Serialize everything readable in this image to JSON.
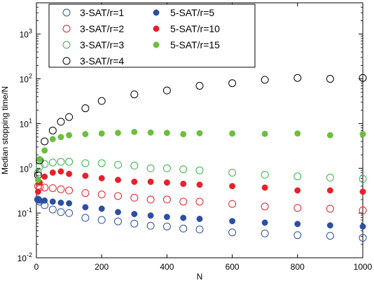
{
  "chart_data": {
    "type": "scatter",
    "xlabel": "N",
    "ylabel": "Median stopping time/N",
    "xlim": [
      0,
      1000
    ],
    "ylim_log10": [
      -2,
      3.7
    ],
    "y_scale": "log",
    "legend_position": "top-left",
    "x_ticks": [
      "0",
      "200",
      "400",
      "600",
      "800",
      "1000"
    ],
    "x_tick_values": [
      0,
      200,
      400,
      600,
      800,
      1000
    ],
    "y_tick_exponents": [
      -2,
      -1,
      0,
      1,
      2,
      3
    ],
    "y_tick_base": "10",
    "series": [
      {
        "name": "3-SAT/r=1",
        "color": "#2b4fa2",
        "filled": false,
        "x": [
          5,
          10,
          25,
          50,
          75,
          100,
          150,
          200,
          250,
          300,
          350,
          400,
          450,
          500,
          600,
          700,
          800,
          900,
          1000
        ],
        "y": [
          0.2,
          0.18,
          0.15,
          0.12,
          0.105,
          0.1,
          0.078,
          0.07,
          0.065,
          0.058,
          0.052,
          0.05,
          0.045,
          0.043,
          0.037,
          0.035,
          0.032,
          0.031,
          0.028
        ]
      },
      {
        "name": "3-SAT/r=2",
        "color": "#e8202a",
        "filled": false,
        "x": [
          5,
          10,
          25,
          50,
          75,
          100,
          150,
          200,
          250,
          300,
          350,
          400,
          450,
          500,
          600,
          700,
          800,
          900,
          1000
        ],
        "y": [
          0.4,
          0.38,
          0.37,
          0.36,
          0.34,
          0.32,
          0.28,
          0.26,
          0.24,
          0.22,
          0.2,
          0.2,
          0.18,
          0.18,
          0.16,
          0.14,
          0.13,
          0.125,
          0.115
        ]
      },
      {
        "name": "3-SAT/r=3",
        "color": "#39b34a",
        "filled": false,
        "x": [
          5,
          10,
          25,
          50,
          75,
          100,
          150,
          200,
          250,
          300,
          350,
          400,
          450,
          500,
          600,
          700,
          800,
          900,
          1000
        ],
        "y": [
          0.8,
          1.1,
          1.25,
          1.35,
          1.4,
          1.4,
          1.3,
          1.3,
          1.2,
          1.15,
          1.0,
          1.0,
          0.95,
          0.9,
          0.8,
          0.72,
          0.66,
          0.62,
          0.58
        ]
      },
      {
        "name": "3-SAT/r=4",
        "color": "#000000",
        "filled": false,
        "x": [
          5,
          10,
          25,
          50,
          75,
          100,
          150,
          200,
          300,
          400,
          500,
          600,
          700,
          800,
          900,
          1000
        ],
        "y": [
          0.7,
          1.5,
          4,
          7,
          11,
          14,
          22,
          32,
          45,
          55,
          70,
          80,
          95,
          105,
          100,
          105
        ]
      },
      {
        "name": "5-SAT/r=5",
        "color": "#2b4fa2",
        "filled": true,
        "x": [
          5,
          10,
          25,
          50,
          75,
          100,
          150,
          200,
          250,
          300,
          350,
          400,
          450,
          500,
          600,
          700,
          800,
          900,
          1000
        ],
        "y": [
          0.2,
          0.19,
          0.19,
          0.18,
          0.17,
          0.165,
          0.135,
          0.125,
          0.105,
          0.095,
          0.088,
          0.082,
          0.078,
          0.074,
          0.066,
          0.061,
          0.057,
          0.053,
          0.05
        ]
      },
      {
        "name": "5-SAT/r=10",
        "color": "#e8202a",
        "filled": true,
        "x": [
          5,
          10,
          25,
          50,
          75,
          100,
          150,
          200,
          250,
          300,
          350,
          400,
          450,
          500,
          600,
          700,
          800,
          900,
          1000
        ],
        "y": [
          0.3,
          0.48,
          0.65,
          0.8,
          0.85,
          0.75,
          0.68,
          0.6,
          0.55,
          0.5,
          0.5,
          0.48,
          0.45,
          0.43,
          0.4,
          0.37,
          0.32,
          0.32,
          0.3
        ]
      },
      {
        "name": "5-SAT/r=15",
        "color": "#6cbf3c",
        "filled": true,
        "x": [
          5,
          10,
          25,
          50,
          75,
          100,
          150,
          200,
          250,
          300,
          350,
          400,
          450,
          500,
          600,
          700,
          800,
          900,
          1000
        ],
        "y": [
          0.55,
          1.6,
          2.5,
          4.5,
          5.0,
          5.5,
          5.8,
          6.0,
          6.2,
          6.5,
          6.3,
          6.2,
          5.8,
          6.1,
          6.0,
          5.9,
          6.0,
          5.5,
          5.8
        ]
      }
    ]
  }
}
